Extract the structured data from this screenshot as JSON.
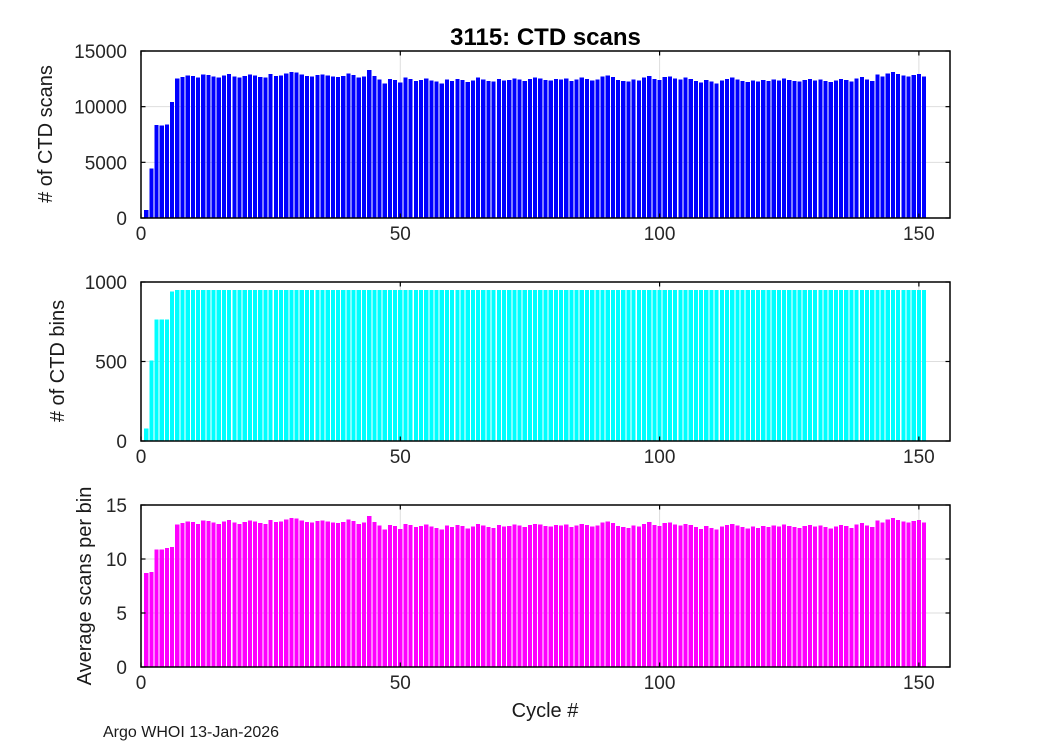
{
  "figure": {
    "title": "3115: CTD scans",
    "xlabel": "Cycle #",
    "annotation": "Argo WHOI 13-Jan-2026",
    "background_color": "#ffffff",
    "axis_color": "#000000",
    "tick_label_color": "#262626",
    "grid_color": "#dedede"
  },
  "chart_data": [
    {
      "id": "ctd-scans",
      "type": "bar",
      "title": "3115: CTD scans",
      "ylabel": "# of CTD scans",
      "color": "#0000ff",
      "xlim": [
        0,
        156
      ],
      "ylim": [
        0,
        15000
      ],
      "xticks": [
        0,
        50,
        100,
        150
      ],
      "yticks": [
        0,
        5000,
        10000,
        15000
      ],
      "grid": true,
      "x_start": 1,
      "values": [
        700,
        4430,
        8350,
        8300,
        8400,
        10400,
        12550,
        12650,
        12800,
        12750,
        12600,
        12900,
        12850,
        12700,
        12600,
        12800,
        12950,
        12700,
        12600,
        12750,
        12900,
        12800,
        12650,
        12600,
        12950,
        12750,
        12800,
        13000,
        13100,
        13050,
        12900,
        12750,
        12700,
        12850,
        12900,
        12800,
        12700,
        12650,
        12750,
        13000,
        12850,
        12600,
        12700,
        13300,
        12750,
        12450,
        12100,
        12500,
        12400,
        12150,
        12600,
        12500,
        12300,
        12400,
        12550,
        12350,
        12250,
        12100,
        12450,
        12300,
        12500,
        12400,
        12200,
        12350,
        12600,
        12450,
        12300,
        12250,
        12500,
        12350,
        12400,
        12550,
        12450,
        12300,
        12500,
        12600,
        12550,
        12400,
        12350,
        12500,
        12450,
        12550,
        12300,
        12450,
        12600,
        12500,
        12350,
        12450,
        12700,
        12800,
        12650,
        12400,
        12300,
        12250,
        12450,
        12350,
        12600,
        12750,
        12500,
        12400,
        12650,
        12700,
        12550,
        12450,
        12600,
        12500,
        12300,
        12150,
        12400,
        12250,
        12100,
        12350,
        12500,
        12600,
        12450,
        12300,
        12200,
        12350,
        12250,
        12400,
        12300,
        12450,
        12350,
        12550,
        12400,
        12300,
        12250,
        12400,
        12500,
        12350,
        12450,
        12300,
        12200,
        12350,
        12500,
        12400,
        12250,
        12550,
        12650,
        12450,
        12300,
        12900,
        12700,
        13000,
        13100,
        12950,
        12800,
        12700,
        12850,
        12950,
        12700
      ]
    },
    {
      "id": "ctd-bins",
      "type": "bar",
      "ylabel": "# of CTD bins",
      "color": "#00ffff",
      "xlim": [
        0,
        156
      ],
      "ylim": [
        0,
        1000
      ],
      "xticks": [
        0,
        50,
        100,
        150
      ],
      "yticks": [
        0,
        500,
        1000
      ],
      "grid": true,
      "x_start": 1,
      "values": [
        80,
        505,
        765,
        765,
        765,
        940,
        950,
        950,
        950,
        950,
        950,
        950,
        950,
        950,
        950,
        950,
        950,
        950,
        950,
        950,
        950,
        950,
        950,
        950,
        950,
        950,
        950,
        950,
        950,
        950,
        950,
        950,
        950,
        950,
        950,
        950,
        950,
        950,
        950,
        950,
        950,
        950,
        950,
        950,
        950,
        950,
        950,
        950,
        950,
        950,
        950,
        950,
        950,
        950,
        950,
        950,
        950,
        950,
        950,
        950,
        950,
        950,
        950,
        950,
        950,
        950,
        950,
        950,
        950,
        950,
        950,
        950,
        950,
        950,
        950,
        950,
        950,
        950,
        950,
        950,
        950,
        950,
        950,
        950,
        950,
        950,
        950,
        950,
        950,
        950,
        950,
        950,
        950,
        950,
        950,
        950,
        950,
        950,
        950,
        950,
        950,
        950,
        950,
        950,
        950,
        950,
        950,
        950,
        950,
        950,
        950,
        950,
        950,
        950,
        950,
        950,
        950,
        950,
        950,
        950,
        950,
        950,
        950,
        950,
        950,
        950,
        950,
        950,
        950,
        950,
        950,
        950,
        950,
        950,
        950,
        950,
        950,
        950,
        950,
        950,
        950,
        950,
        950,
        950,
        950,
        950,
        950,
        950,
        950,
        950,
        950
      ]
    },
    {
      "id": "avg-scans-per-bin",
      "type": "bar",
      "ylabel": "Average scans per bin",
      "xlabel": "Cycle #",
      "color": "#ff00ff",
      "xlim": [
        0,
        156
      ],
      "ylim": [
        0,
        15
      ],
      "xticks": [
        0,
        50,
        100,
        150
      ],
      "yticks": [
        0,
        5,
        10,
        15
      ],
      "grid": true,
      "x_start": 1,
      "values": [
        8.7,
        8.8,
        10.9,
        10.9,
        11.0,
        11.1,
        13.21,
        13.32,
        13.47,
        13.42,
        13.26,
        13.58,
        13.53,
        13.37,
        13.26,
        13.47,
        13.63,
        13.37,
        13.26,
        13.42,
        13.58,
        13.47,
        13.32,
        13.26,
        13.63,
        13.42,
        13.47,
        13.68,
        13.79,
        13.74,
        13.58,
        13.42,
        13.37,
        13.53,
        13.58,
        13.47,
        13.37,
        13.32,
        13.42,
        13.68,
        13.53,
        13.26,
        13.37,
        14.0,
        13.42,
        13.11,
        12.74,
        13.16,
        13.05,
        12.79,
        13.26,
        13.16,
        12.95,
        13.05,
        13.21,
        13.0,
        12.89,
        12.74,
        13.11,
        12.95,
        13.16,
        13.05,
        12.84,
        13.0,
        13.26,
        13.11,
        12.95,
        12.89,
        13.16,
        13.0,
        13.05,
        13.21,
        13.11,
        12.95,
        13.16,
        13.26,
        13.21,
        13.05,
        13.0,
        13.16,
        13.11,
        13.21,
        12.95,
        13.11,
        13.26,
        13.16,
        13.0,
        13.11,
        13.37,
        13.47,
        13.32,
        13.05,
        12.95,
        12.89,
        13.11,
        13.0,
        13.26,
        13.42,
        13.16,
        13.05,
        13.32,
        13.37,
        13.21,
        13.11,
        13.26,
        13.16,
        12.95,
        12.79,
        13.05,
        12.89,
        12.74,
        13.0,
        13.16,
        13.26,
        13.11,
        12.95,
        12.84,
        13.0,
        12.89,
        13.05,
        12.95,
        13.11,
        13.0,
        13.21,
        13.05,
        12.95,
        12.89,
        13.05,
        13.16,
        13.0,
        13.11,
        12.95,
        12.84,
        13.0,
        13.16,
        13.05,
        12.89,
        13.21,
        13.32,
        13.11,
        12.95,
        13.58,
        13.37,
        13.68,
        13.79,
        13.63,
        13.47,
        13.37,
        13.53,
        13.63,
        13.37
      ]
    }
  ]
}
